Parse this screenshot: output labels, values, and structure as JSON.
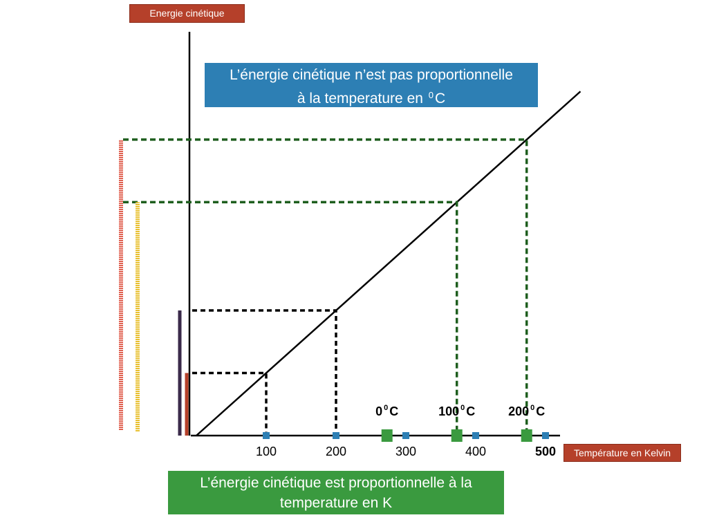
{
  "chart_data": {
    "type": "line",
    "ylabel": "Energie cinétique",
    "xlabel": "Température en Kelvin",
    "x_ticks": [
      100,
      200,
      300,
      400,
      500
    ],
    "celsius_ticks": [
      {
        "value": "0",
        "unit": "0",
        "suffix": "C",
        "kelvin": 273
      },
      {
        "value": "100",
        "unit": "0",
        "suffix": "C",
        "kelvin": 373
      },
      {
        "value": "200",
        "unit": "0",
        "suffix": "C",
        "kelvin": 473
      }
    ],
    "xlim": [
      0,
      550
    ],
    "ylim": [
      0,
      550
    ],
    "series": [
      {
        "x": [
          0,
          550
        ],
        "y": [
          0,
          550
        ]
      }
    ],
    "guides_kelvin": [
      100,
      200
    ],
    "guides_celsius": [
      373,
      473
    ],
    "energy_bars_kelvin": [
      100,
      200
    ],
    "energy_bars_celsius": [
      373,
      473
    ],
    "annotations": {
      "celsius_note_line1": "L’énergie cinétique n’est pas proportionnelle",
      "celsius_note_line2_pre": "à la temperature en ",
      "celsius_note_sup": "0",
      "celsius_note_line2_post": "C",
      "kelvin_note_line1": "L’énergie cinétique est proportionnelle à la",
      "kelvin_note_line2": "temperature en K"
    },
    "colors": {
      "axis": "#000000",
      "kelvin_guides": "#000000",
      "celsius_guides": "#1e5e1e",
      "bar_100K": "#b5402a",
      "bar_200K": "#3a2a4a",
      "bar_373K": "#e8c030",
      "bar_473K": "#e06050",
      "kelvin_markers": "#2d7fb4",
      "celsius_markers": "#3a9a3f"
    }
  }
}
